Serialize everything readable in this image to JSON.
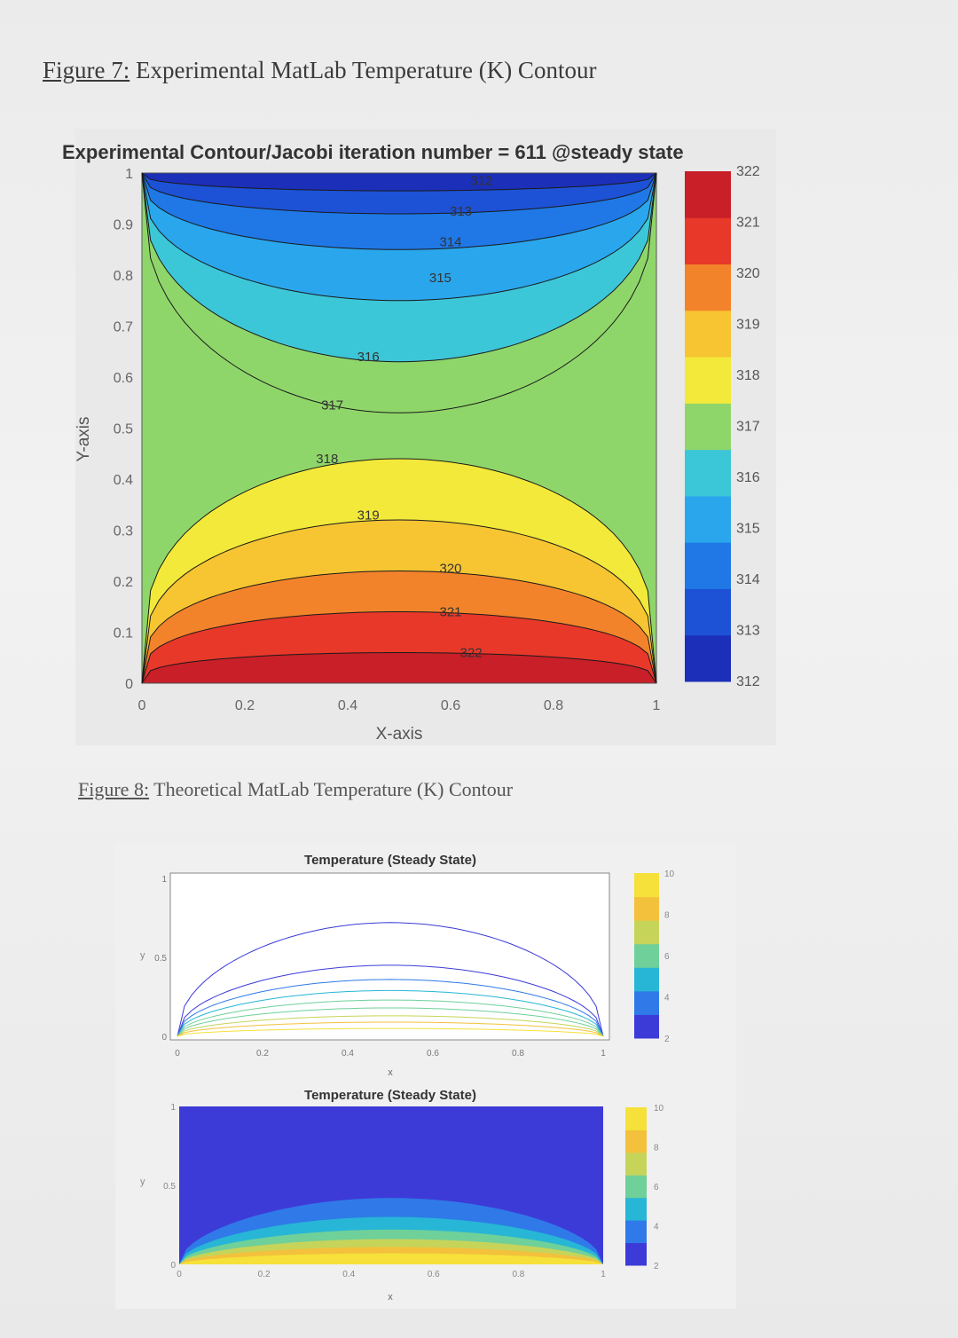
{
  "captions": {
    "fig7_label": "Figure 7:",
    "fig7_text": " Experimental MatLab Temperature (K) Contour",
    "fig8_label": "Figure 8:",
    "fig8_text": " Theoretical MatLab Temperature (K) Contour"
  },
  "chart_data": [
    {
      "type": "contour",
      "title": "Experimental Contour/Jacobi iteration number = 611 @steady state",
      "xlabel": "X-axis",
      "ylabel": "Y-axis",
      "xlim": [
        0,
        1
      ],
      "ylim": [
        0,
        1
      ],
      "xticks": [
        "0",
        "0.2",
        "0.4",
        "0.6",
        "0.8",
        "1"
      ],
      "yticks": [
        "0",
        "0.1",
        "0.2",
        "0.3",
        "0.4",
        "0.5",
        "0.6",
        "0.7",
        "0.8",
        "0.9",
        "1"
      ],
      "levels": [
        312,
        313,
        314,
        315,
        316,
        317,
        318,
        319,
        320,
        321,
        322
      ],
      "top_levels": [
        312,
        313,
        314,
        315,
        316,
        317
      ],
      "bottom_levels": [
        318,
        319,
        320,
        321,
        322
      ],
      "level_labels": [
        "312",
        "313",
        "314",
        "315",
        "316",
        "317",
        "318",
        "319",
        "320",
        "321",
        "322"
      ],
      "colorbar": {
        "min": 312,
        "max": 322,
        "ticks": [
          "312",
          "313",
          "314",
          "315",
          "316",
          "317",
          "318",
          "319",
          "320",
          "321",
          "322"
        ]
      },
      "colormap": [
        "#1c2fb8",
        "#1d52d6",
        "#1f78e6",
        "#2aa6ec",
        "#3cc7d8",
        "#8fd66a",
        "#f3e93a",
        "#f7c532",
        "#f3832a",
        "#e8382a",
        "#c81f28"
      ],
      "legend": "colorbar-right"
    },
    {
      "type": "contour",
      "title": "Temperature (Steady State)",
      "xlabel": "x",
      "ylabel": "y",
      "xlim": [
        0,
        1
      ],
      "ylim": [
        0,
        1
      ],
      "xticks": [
        "0",
        "0.2",
        "0.4",
        "0.6",
        "0.8",
        "1"
      ],
      "yticks": [
        "0",
        "0.5",
        "1"
      ],
      "levels": [
        1,
        2,
        3,
        4,
        5,
        6,
        7,
        8,
        9
      ],
      "colorbar": {
        "min": 2,
        "max": 10,
        "ticks": [
          "2",
          "4",
          "6",
          "8",
          "10"
        ]
      },
      "colormap": [
        "#3d3bd8",
        "#2f7ae8",
        "#27b6d6",
        "#6fd09a",
        "#c6d45a",
        "#f3c13c",
        "#f6e13a"
      ],
      "legend": "colorbar-right"
    },
    {
      "type": "heatmap",
      "title": "Temperature (Steady State)",
      "xlabel": "x",
      "ylabel": "y",
      "xlim": [
        0,
        1
      ],
      "ylim": [
        0,
        1
      ],
      "xticks": [
        "0",
        "0.2",
        "0.4",
        "0.6",
        "0.8",
        "1"
      ],
      "yticks": [
        "0",
        "0.5",
        "1"
      ],
      "colorbar": {
        "min": 2,
        "max": 10,
        "ticks": [
          "2",
          "4",
          "6",
          "8",
          "10"
        ]
      },
      "colormap": [
        "#3d3bd8",
        "#2f7ae8",
        "#27b6d6",
        "#6fd09a",
        "#c6d45a",
        "#f3c13c",
        "#f6e13a"
      ],
      "legend": "colorbar-right"
    }
  ]
}
